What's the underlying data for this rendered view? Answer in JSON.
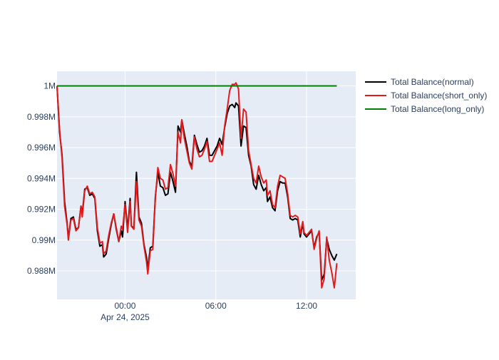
{
  "chart_data": {
    "type": "line",
    "title": "",
    "xlabel": "",
    "ylabel": "",
    "x_start": "2025-04-23T19:30",
    "x_end": "2025-04-24T15:15",
    "xlim": [
      "2025-04-23T19:30",
      "2025-04-24T15:15"
    ],
    "ylim": [
      0.98615,
      1.00095
    ],
    "x_ticks": [
      {
        "x": "2025-04-24T00:00",
        "label": "00:00",
        "sublabel": "Apr 24, 2025"
      },
      {
        "x": "2025-04-24T06:00",
        "label": "06:00",
        "sublabel": ""
      },
      {
        "x": "2025-04-24T12:00",
        "label": "12:00",
        "sublabel": ""
      }
    ],
    "y_ticks": [
      {
        "y": 0.988,
        "label": "0.988M"
      },
      {
        "y": 0.99,
        "label": "0.99M"
      },
      {
        "y": 0.992,
        "label": "0.992M"
      },
      {
        "y": 0.994,
        "label": "0.994M"
      },
      {
        "y": 0.996,
        "label": "0.996M"
      },
      {
        "y": 0.998,
        "label": "0.998M"
      },
      {
        "y": 1.0,
        "label": "1M"
      }
    ],
    "grid": true,
    "legend_position": "right",
    "colors": {
      "plot_bg": "#e5ecf6",
      "grid": "#ffffff",
      "text": "#2a3f5f"
    },
    "series": [
      {
        "name": "Total Balance(normal)",
        "color": "#000000",
        "points": [
          [
            "2025-04-23T19:30",
            1.0
          ],
          [
            "2025-04-23T19:40",
            0.997
          ],
          [
            "2025-04-23T19:50",
            0.9955
          ],
          [
            "2025-04-23T20:00",
            0.9925
          ],
          [
            "2025-04-23T20:10",
            0.9911
          ],
          [
            "2025-04-23T20:15",
            0.9901
          ],
          [
            "2025-04-23T20:25",
            0.9914
          ],
          [
            "2025-04-23T20:35",
            0.9915
          ],
          [
            "2025-04-23T20:45",
            0.9907
          ],
          [
            "2025-04-23T20:55",
            0.9908
          ],
          [
            "2025-04-23T21:05",
            0.9922
          ],
          [
            "2025-04-23T21:10",
            0.9917
          ],
          [
            "2025-04-23T21:20",
            0.9933
          ],
          [
            "2025-04-23T21:30",
            0.9934
          ],
          [
            "2025-04-23T21:40",
            0.9929
          ],
          [
            "2025-04-23T21:50",
            0.993
          ],
          [
            "2025-04-23T22:00",
            0.9927
          ],
          [
            "2025-04-23T22:10",
            0.9906
          ],
          [
            "2025-04-23T22:20",
            0.9896
          ],
          [
            "2025-04-23T22:30",
            0.9897
          ],
          [
            "2025-04-23T22:35",
            0.9889
          ],
          [
            "2025-04-23T22:45",
            0.9891
          ],
          [
            "2025-04-23T22:55",
            0.9901
          ],
          [
            "2025-04-23T23:05",
            0.991
          ],
          [
            "2025-04-23T23:15",
            0.9917
          ],
          [
            "2025-04-23T23:25",
            0.9907
          ],
          [
            "2025-04-23T23:35",
            0.9899
          ],
          [
            "2025-04-23T23:45",
            0.9906
          ],
          [
            "2025-04-23T23:50",
            0.9902
          ],
          [
            "2025-04-24T00:00",
            0.9925
          ],
          [
            "2025-04-24T00:10",
            0.9907
          ],
          [
            "2025-04-24T00:20",
            0.9927
          ],
          [
            "2025-04-24T00:25",
            0.9909
          ],
          [
            "2025-04-24T00:35",
            0.9908
          ],
          [
            "2025-04-24T00:45",
            0.9944
          ],
          [
            "2025-04-24T00:55",
            0.9915
          ],
          [
            "2025-04-24T01:05",
            0.9911
          ],
          [
            "2025-04-24T01:15",
            0.9897
          ],
          [
            "2025-04-24T01:25",
            0.9889
          ],
          [
            "2025-04-24T01:30",
            0.9881
          ],
          [
            "2025-04-24T01:40",
            0.9895
          ],
          [
            "2025-04-24T01:50",
            0.9896
          ],
          [
            "2025-04-24T02:00",
            0.9928
          ],
          [
            "2025-04-24T02:10",
            0.9944
          ],
          [
            "2025-04-24T02:20",
            0.9935
          ],
          [
            "2025-04-24T02:30",
            0.9934
          ],
          [
            "2025-04-24T02:40",
            0.9929
          ],
          [
            "2025-04-24T02:50",
            0.993
          ],
          [
            "2025-04-24T03:00",
            0.9944
          ],
          [
            "2025-04-24T03:10",
            0.9938
          ],
          [
            "2025-04-24T03:20",
            0.9931
          ],
          [
            "2025-04-24T03:30",
            0.9974
          ],
          [
            "2025-04-24T03:40",
            0.997
          ],
          [
            "2025-04-24T03:45",
            0.9978
          ],
          [
            "2025-04-24T03:55",
            0.9969
          ],
          [
            "2025-04-24T04:05",
            0.9961
          ],
          [
            "2025-04-24T04:15",
            0.9951
          ],
          [
            "2025-04-24T04:25",
            0.9948
          ],
          [
            "2025-04-24T04:35",
            0.9968
          ],
          [
            "2025-04-24T04:45",
            0.9962
          ],
          [
            "2025-04-24T04:55",
            0.9957
          ],
          [
            "2025-04-24T05:05",
            0.9958
          ],
          [
            "2025-04-24T05:15",
            0.9961
          ],
          [
            "2025-04-24T05:25",
            0.9966
          ],
          [
            "2025-04-24T05:35",
            0.9955
          ],
          [
            "2025-04-24T05:45",
            0.9955
          ],
          [
            "2025-04-24T05:55",
            0.9958
          ],
          [
            "2025-04-24T06:05",
            0.9961
          ],
          [
            "2025-04-24T06:15",
            0.9966
          ],
          [
            "2025-04-24T06:25",
            0.9962
          ],
          [
            "2025-04-24T06:35",
            0.9973
          ],
          [
            "2025-04-24T06:45",
            0.9982
          ],
          [
            "2025-04-24T06:55",
            0.9987
          ],
          [
            "2025-04-24T07:05",
            0.9988
          ],
          [
            "2025-04-24T07:15",
            0.9986
          ],
          [
            "2025-04-24T07:20",
            0.9989
          ],
          [
            "2025-04-24T07:30",
            0.9987
          ],
          [
            "2025-04-24T07:40",
            0.9961
          ],
          [
            "2025-04-24T07:50",
            0.9974
          ],
          [
            "2025-04-24T08:00",
            0.9973
          ],
          [
            "2025-04-24T08:10",
            0.9955
          ],
          [
            "2025-04-24T08:20",
            0.9948
          ],
          [
            "2025-04-24T08:30",
            0.9936
          ],
          [
            "2025-04-24T08:40",
            0.9933
          ],
          [
            "2025-04-24T08:50",
            0.9942
          ],
          [
            "2025-04-24T09:00",
            0.9936
          ],
          [
            "2025-04-24T09:10",
            0.9932
          ],
          [
            "2025-04-24T09:20",
            0.9934
          ],
          [
            "2025-04-24T09:25",
            0.9925
          ],
          [
            "2025-04-24T09:35",
            0.9928
          ],
          [
            "2025-04-24T09:45",
            0.9921
          ],
          [
            "2025-04-24T09:55",
            0.9919
          ],
          [
            "2025-04-24T10:05",
            0.9932
          ],
          [
            "2025-04-24T10:15",
            0.9938
          ],
          [
            "2025-04-24T10:25",
            0.9937
          ],
          [
            "2025-04-24T10:35",
            0.9937
          ],
          [
            "2025-04-24T10:45",
            0.9928
          ],
          [
            "2025-04-24T10:55",
            0.9914
          ],
          [
            "2025-04-24T11:05",
            0.9913
          ],
          [
            "2025-04-24T11:15",
            0.9914
          ],
          [
            "2025-04-24T11:25",
            0.9913
          ],
          [
            "2025-04-24T11:35",
            0.9902
          ],
          [
            "2025-04-24T11:45",
            0.9911
          ],
          [
            "2025-04-24T11:50",
            0.9904
          ],
          [
            "2025-04-24T12:00",
            0.9902
          ],
          [
            "2025-04-24T12:10",
            0.9904
          ],
          [
            "2025-04-24T12:20",
            0.9906
          ],
          [
            "2025-04-24T12:30",
            0.9895
          ],
          [
            "2025-04-24T12:40",
            0.9902
          ],
          [
            "2025-04-24T12:50",
            0.9905
          ],
          [
            "2025-04-24T13:00",
            0.9874
          ],
          [
            "2025-04-24T13:10",
            0.9878
          ],
          [
            "2025-04-24T13:20",
            0.9901
          ],
          [
            "2025-04-24T13:30",
            0.9894
          ],
          [
            "2025-04-24T13:40",
            0.989
          ],
          [
            "2025-04-24T13:50",
            0.9887
          ],
          [
            "2025-04-24T14:00",
            0.9891
          ]
        ]
      },
      {
        "name": "Total Balance(short_only)",
        "color": "#e31a1c",
        "points": [
          [
            "2025-04-23T19:30",
            1.0
          ],
          [
            "2025-04-23T19:40",
            0.9972
          ],
          [
            "2025-04-23T19:50",
            0.9953
          ],
          [
            "2025-04-23T20:00",
            0.9922
          ],
          [
            "2025-04-23T20:10",
            0.991
          ],
          [
            "2025-04-23T20:15",
            0.99
          ],
          [
            "2025-04-23T20:25",
            0.9913
          ],
          [
            "2025-04-23T20:35",
            0.9914
          ],
          [
            "2025-04-23T20:45",
            0.9906
          ],
          [
            "2025-04-23T20:55",
            0.9908
          ],
          [
            "2025-04-23T21:05",
            0.9922
          ],
          [
            "2025-04-23T21:10",
            0.9915
          ],
          [
            "2025-04-23T21:20",
            0.9932
          ],
          [
            "2025-04-23T21:30",
            0.9935
          ],
          [
            "2025-04-23T21:40",
            0.993
          ],
          [
            "2025-04-23T21:50",
            0.9931
          ],
          [
            "2025-04-23T22:00",
            0.9928
          ],
          [
            "2025-04-23T22:10",
            0.9908
          ],
          [
            "2025-04-23T22:20",
            0.9898
          ],
          [
            "2025-04-23T22:30",
            0.9899
          ],
          [
            "2025-04-23T22:35",
            0.9891
          ],
          [
            "2025-04-23T22:45",
            0.9893
          ],
          [
            "2025-04-23T22:55",
            0.9903
          ],
          [
            "2025-04-23T23:05",
            0.9911
          ],
          [
            "2025-04-23T23:15",
            0.9917
          ],
          [
            "2025-04-23T23:25",
            0.9908
          ],
          [
            "2025-04-23T23:35",
            0.9899
          ],
          [
            "2025-04-23T23:45",
            0.9909
          ],
          [
            "2025-04-23T23:50",
            0.9907
          ],
          [
            "2025-04-24T00:00",
            0.9923
          ],
          [
            "2025-04-24T00:10",
            0.9905
          ],
          [
            "2025-04-24T00:20",
            0.9925
          ],
          [
            "2025-04-24T00:25",
            0.9909
          ],
          [
            "2025-04-24T00:35",
            0.9907
          ],
          [
            "2025-04-24T00:45",
            0.9938
          ],
          [
            "2025-04-24T00:55",
            0.9913
          ],
          [
            "2025-04-24T01:05",
            0.9909
          ],
          [
            "2025-04-24T01:15",
            0.9896
          ],
          [
            "2025-04-24T01:25",
            0.9886
          ],
          [
            "2025-04-24T01:30",
            0.9878
          ],
          [
            "2025-04-24T01:40",
            0.9893
          ],
          [
            "2025-04-24T01:50",
            0.9894
          ],
          [
            "2025-04-24T02:00",
            0.9927
          ],
          [
            "2025-04-24T02:10",
            0.9947
          ],
          [
            "2025-04-24T02:20",
            0.994
          ],
          [
            "2025-04-24T02:30",
            0.9939
          ],
          [
            "2025-04-24T02:40",
            0.9933
          ],
          [
            "2025-04-24T02:50",
            0.9934
          ],
          [
            "2025-04-24T03:00",
            0.9949
          ],
          [
            "2025-04-24T03:10",
            0.9943
          ],
          [
            "2025-04-24T03:20",
            0.9935
          ],
          [
            "2025-04-24T03:30",
            0.997
          ],
          [
            "2025-04-24T03:40",
            0.9963
          ],
          [
            "2025-04-24T03:45",
            0.9978
          ],
          [
            "2025-04-24T03:55",
            0.9966
          ],
          [
            "2025-04-24T04:05",
            0.9958
          ],
          [
            "2025-04-24T04:15",
            0.995
          ],
          [
            "2025-04-24T04:25",
            0.9946
          ],
          [
            "2025-04-24T04:35",
            0.9967
          ],
          [
            "2025-04-24T04:45",
            0.9959
          ],
          [
            "2025-04-24T04:55",
            0.9954
          ],
          [
            "2025-04-24T05:05",
            0.9955
          ],
          [
            "2025-04-24T05:15",
            0.9959
          ],
          [
            "2025-04-24T05:25",
            0.9964
          ],
          [
            "2025-04-24T05:35",
            0.9951
          ],
          [
            "2025-04-24T05:45",
            0.9951
          ],
          [
            "2025-04-24T05:55",
            0.9955
          ],
          [
            "2025-04-24T06:05",
            0.9959
          ],
          [
            "2025-04-24T06:15",
            0.9963
          ],
          [
            "2025-04-24T06:25",
            0.9955
          ],
          [
            "2025-04-24T06:35",
            0.9974
          ],
          [
            "2025-04-24T06:45",
            0.9985
          ],
          [
            "2025-04-24T06:55",
            0.9997
          ],
          [
            "2025-04-24T07:05",
            1.0001
          ],
          [
            "2025-04-24T07:15",
            1.0001
          ],
          [
            "2025-04-24T07:20",
            1.0002
          ],
          [
            "2025-04-24T07:30",
            0.9998
          ],
          [
            "2025-04-24T07:40",
            0.9966
          ],
          [
            "2025-04-24T07:50",
            0.9985
          ],
          [
            "2025-04-24T08:00",
            0.9983
          ],
          [
            "2025-04-24T08:10",
            0.9958
          ],
          [
            "2025-04-24T08:20",
            0.9949
          ],
          [
            "2025-04-24T08:30",
            0.994
          ],
          [
            "2025-04-24T08:40",
            0.9937
          ],
          [
            "2025-04-24T08:50",
            0.9948
          ],
          [
            "2025-04-24T09:00",
            0.9941
          ],
          [
            "2025-04-24T09:10",
            0.9937
          ],
          [
            "2025-04-24T09:20",
            0.9939
          ],
          [
            "2025-04-24T09:25",
            0.9929
          ],
          [
            "2025-04-24T09:35",
            0.9932
          ],
          [
            "2025-04-24T09:45",
            0.9923
          ],
          [
            "2025-04-24T09:55",
            0.9921
          ],
          [
            "2025-04-24T10:05",
            0.9935
          ],
          [
            "2025-04-24T10:15",
            0.9942
          ],
          [
            "2025-04-24T10:25",
            0.9941
          ],
          [
            "2025-04-24T10:35",
            0.994
          ],
          [
            "2025-04-24T10:45",
            0.993
          ],
          [
            "2025-04-24T10:55",
            0.9916
          ],
          [
            "2025-04-24T11:05",
            0.9915
          ],
          [
            "2025-04-24T11:15",
            0.9916
          ],
          [
            "2025-04-24T11:25",
            0.9915
          ],
          [
            "2025-04-24T11:35",
            0.9904
          ],
          [
            "2025-04-24T11:45",
            0.9912
          ],
          [
            "2025-04-24T11:50",
            0.9905
          ],
          [
            "2025-04-24T12:00",
            0.9903
          ],
          [
            "2025-04-24T12:10",
            0.9905
          ],
          [
            "2025-04-24T12:20",
            0.9907
          ],
          [
            "2025-04-24T12:30",
            0.9894
          ],
          [
            "2025-04-24T12:40",
            0.9901
          ],
          [
            "2025-04-24T12:50",
            0.9906
          ],
          [
            "2025-04-24T13:00",
            0.9869
          ],
          [
            "2025-04-24T13:10",
            0.9875
          ],
          [
            "2025-04-24T13:20",
            0.9902
          ],
          [
            "2025-04-24T13:30",
            0.9887
          ],
          [
            "2025-04-24T13:40",
            0.9879
          ],
          [
            "2025-04-24T13:50",
            0.9869
          ],
          [
            "2025-04-24T14:00",
            0.9885
          ]
        ]
      },
      {
        "name": "Total Balance(long_only)",
        "color": "#008000",
        "points": [
          [
            "2025-04-23T19:30",
            1.0
          ],
          [
            "2025-04-24T14:00",
            1.0
          ]
        ]
      }
    ]
  }
}
